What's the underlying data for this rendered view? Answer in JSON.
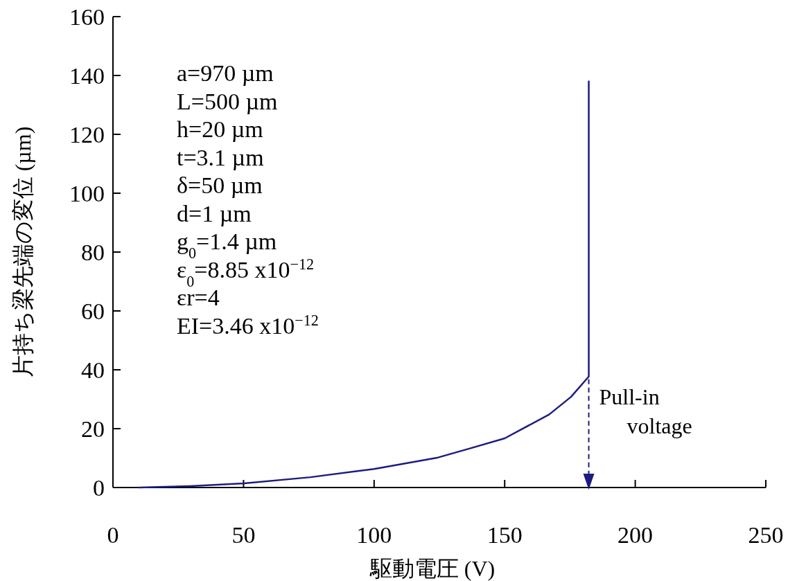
{
  "chart_data": {
    "type": "line",
    "xlabel": "駆動電圧 (V)",
    "ylabel": "片持ち梁先端の変位 (µm)",
    "x": [
      10,
      29.5,
      50.2,
      75.6,
      100,
      124.5,
      136.4,
      150,
      167,
      175.4,
      182.2,
      182.2
    ],
    "series": [
      {
        "color": "#1c1c80",
        "values": [
          0,
          0.5,
          1.4,
          3.5,
          6.3,
          10.2,
          13.2,
          16.7,
          24.8,
          30.8,
          37.7,
          138
        ]
      }
    ],
    "xlim": [
      0,
      250
    ],
    "ylim": [
      0,
      160
    ],
    "xticks": [
      0,
      50,
      100,
      150,
      200,
      250
    ],
    "yticks": [
      0,
      20,
      40,
      60,
      80,
      100,
      120,
      140,
      160
    ],
    "annotations": [
      "a=970 µm",
      "L=500 µm",
      "h=20 µm",
      "t=3.1 µm",
      "δ=50 µm",
      "d=1 µm",
      "g$_{0}$=1.4 µm",
      "ε$_{0}$=8.85 x10$^{−12}$",
      "εr=4",
      "EI=3.46 x10$^{−12}$",
      {
        "text": "Pull-in voltage",
        "x": 182.2,
        "y": 37.7
      }
    ]
  }
}
